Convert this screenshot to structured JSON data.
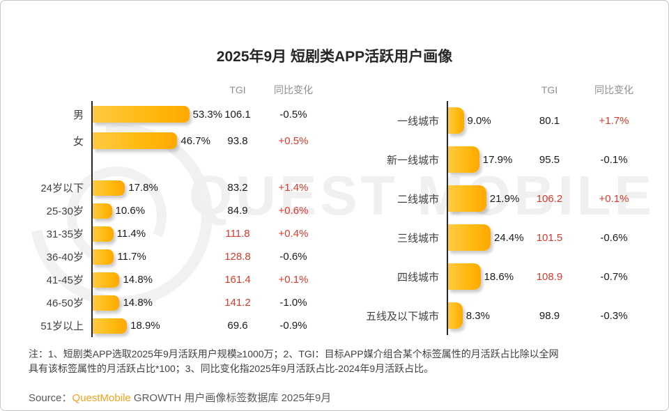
{
  "title": "2025年9月 短剧类APP活跃用户画像",
  "watermark_text": "QUEST MOBILE",
  "columns": {
    "tgi": "TGI",
    "yoy": "同比变化"
  },
  "colors": {
    "bar_gradient_start": "#ffc945",
    "bar_gradient_end": "#ffa800",
    "highlight_red": "#d93a2e",
    "brand_orange": "#f7a21b"
  },
  "chart_data": [
    {
      "type": "bar",
      "orientation": "horizontal",
      "unit": "percent of active users",
      "columns": [
        "TGI",
        "同比变化"
      ],
      "groups": [
        {
          "name": "gender",
          "rows": [
            {
              "label": "男",
              "value": 53.3,
              "value_label": "53.3%",
              "tgi": "106.1",
              "tgi_red": false,
              "yoy": "-0.5%",
              "yoy_red": false
            },
            {
              "label": "女",
              "value": 46.7,
              "value_label": "46.7%",
              "tgi": "93.8",
              "tgi_red": false,
              "yoy": "+0.5%",
              "yoy_red": true
            }
          ]
        },
        {
          "name": "age",
          "rows": [
            {
              "label": "24岁以下",
              "value": 17.8,
              "value_label": "17.8%",
              "tgi": "83.2",
              "tgi_red": false,
              "yoy": "+1.4%",
              "yoy_red": true
            },
            {
              "label": "25-30岁",
              "value": 10.6,
              "value_label": "10.6%",
              "tgi": "84.9",
              "tgi_red": false,
              "yoy": "+0.6%",
              "yoy_red": true
            },
            {
              "label": "31-35岁",
              "value": 11.4,
              "value_label": "11.4%",
              "tgi": "111.8",
              "tgi_red": true,
              "yoy": "+0.4%",
              "yoy_red": true
            },
            {
              "label": "36-40岁",
              "value": 11.7,
              "value_label": "11.7%",
              "tgi": "128.8",
              "tgi_red": true,
              "yoy": "-0.6%",
              "yoy_red": false
            },
            {
              "label": "41-45岁",
              "value": 14.8,
              "value_label": "14.8%",
              "tgi": "161.4",
              "tgi_red": true,
              "yoy": "+0.1%",
              "yoy_red": true
            },
            {
              "label": "46-50岁",
              "value": 14.8,
              "value_label": "14.8%",
              "tgi": "141.2",
              "tgi_red": true,
              "yoy": "-1.0%",
              "yoy_red": false
            },
            {
              "label": "51岁以上",
              "value": 18.9,
              "value_label": "18.9%",
              "tgi": "69.6",
              "tgi_red": false,
              "yoy": "-0.9%",
              "yoy_red": false
            }
          ]
        }
      ]
    },
    {
      "type": "bar",
      "orientation": "horizontal",
      "unit": "percent of active users",
      "columns": [
        "TGI",
        "同比变化"
      ],
      "groups": [
        {
          "name": "city-tier",
          "rows": [
            {
              "label": "一线城市",
              "value": 9.0,
              "value_label": "9.0%",
              "tgi": "80.1",
              "tgi_red": false,
              "yoy": "+1.7%",
              "yoy_red": true
            },
            {
              "label": "新一线城市",
              "value": 17.9,
              "value_label": "17.9%",
              "tgi": "95.5",
              "tgi_red": false,
              "yoy": "-0.1%",
              "yoy_red": false
            },
            {
              "label": "二线城市",
              "value": 21.9,
              "value_label": "21.9%",
              "tgi": "106.2",
              "tgi_red": true,
              "yoy": "+0.1%",
              "yoy_red": true
            },
            {
              "label": "三线城市",
              "value": 24.4,
              "value_label": "24.4%",
              "tgi": "101.5",
              "tgi_red": true,
              "yoy": "-0.6%",
              "yoy_red": false
            },
            {
              "label": "四线城市",
              "value": 18.6,
              "value_label": "18.6%",
              "tgi": "108.9",
              "tgi_red": true,
              "yoy": "-0.7%",
              "yoy_red": false
            },
            {
              "label": "五线及以下城市",
              "value": 8.3,
              "value_label": "8.3%",
              "tgi": "98.9",
              "tgi_red": false,
              "yoy": "-0.3%",
              "yoy_red": false
            }
          ]
        }
      ]
    }
  ],
  "note": {
    "line1": "注：1、短剧类APP选取2025年9月活跃用户规模≥1000万；2、TGI：目标APP媒介组合某个标签属性的月活跃占比除以全网",
    "line2": "具有该标签属性的月活跃占比*100；3、同比变化指2025年9月活跃占比-2024年9月活跃占比。"
  },
  "source": {
    "prefix": "Source：",
    "brand": "QuestMobile",
    "rest": " GROWTH 用户画像标签数据库 2025年9月"
  }
}
